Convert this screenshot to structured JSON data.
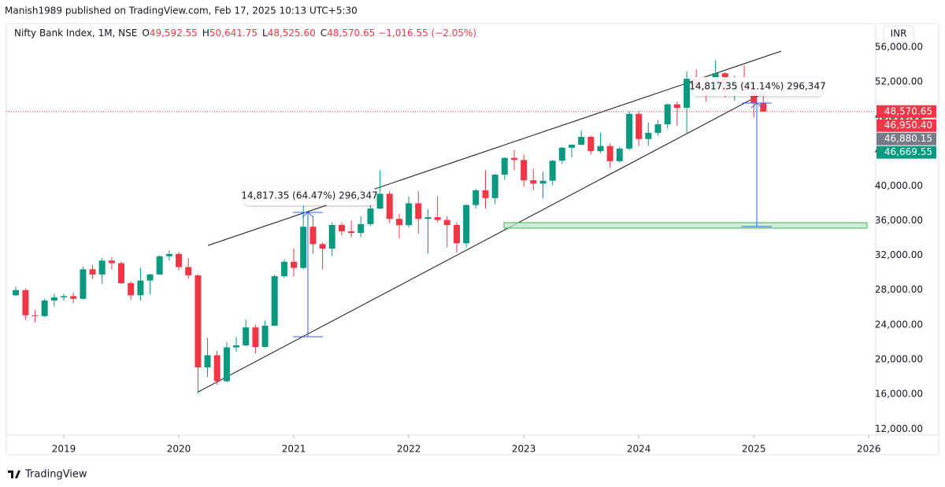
{
  "header": {
    "publisher": "Manish1989 published on TradingView.com, Feb 17, 2025 10:13 UTC+5:30",
    "symbol": "Nifty Bank Index, 1M, NSE",
    "ohlc": [
      {
        "key": "O",
        "value": "49,592.55"
      },
      {
        "key": "H",
        "value": "50,641.75"
      },
      {
        "key": "L",
        "value": "48,525.60"
      },
      {
        "key": "C",
        "value": "48,570.65"
      }
    ],
    "change": "−1,016.55 (−2.05%)",
    "currency": "INR"
  },
  "footer": {
    "brand": "TradingView"
  },
  "annotations": [
    "14,817.35 (64.47%) 296,347",
    "14,817.35 (41.14%) 296,347"
  ],
  "chart_data": {
    "type": "candlestick",
    "up_color": "#089981",
    "down_color": "#f23645",
    "x": [
      2018.583,
      2018.667,
      2018.75,
      2018.833,
      2018.917,
      2019,
      2019.083,
      2019.167,
      2019.25,
      2019.333,
      2019.417,
      2019.5,
      2019.583,
      2019.667,
      2019.75,
      2019.833,
      2019.917,
      2020,
      2020.083,
      2020.167,
      2020.25,
      2020.333,
      2020.417,
      2020.5,
      2020.583,
      2020.667,
      2020.75,
      2020.833,
      2020.917,
      2021,
      2021.083,
      2021.167,
      2021.25,
      2021.333,
      2021.417,
      2021.5,
      2021.583,
      2021.667,
      2021.75,
      2021.833,
      2021.917,
      2022,
      2022.083,
      2022.167,
      2022.25,
      2022.333,
      2022.417,
      2022.5,
      2022.583,
      2022.667,
      2022.75,
      2022.833,
      2022.917,
      2023,
      2023.083,
      2023.167,
      2023.25,
      2023.333,
      2023.417,
      2023.5,
      2023.583,
      2023.667,
      2023.75,
      2023.833,
      2023.917,
      2024,
      2024.083,
      2024.167,
      2024.25,
      2024.333,
      2024.417,
      2024.5,
      2024.583,
      2024.667,
      2024.75,
      2024.833,
      2024.917,
      2025,
      2025.083
    ],
    "open": [
      27400,
      28000,
      25100,
      25000,
      26800,
      27160,
      27300,
      27000,
      30400,
      29800,
      31400,
      31100,
      28800,
      27400,
      29100,
      29800,
      31900,
      32160,
      30650,
      29700,
      19100,
      20500,
      17500,
      21400,
      21640,
      23700,
      21450,
      23900,
      29600,
      31260,
      30560,
      35300,
      33300,
      32780,
      35500,
      34770,
      34580,
      35600,
      37400,
      39100,
      36200,
      35480,
      38000,
      36200,
      36400,
      36080,
      35500,
      33400,
      37800,
      39500,
      38600,
      41300,
      43230,
      42990,
      40650,
      40270,
      40600,
      42900,
      44400,
      44750,
      45650,
      44000,
      44600,
      42850,
      44300,
      48300,
      45400,
      46120,
      47100,
      49400,
      49000,
      52340,
      51300,
      50930,
      52980,
      50800,
      51900,
      50950,
      49592.55
    ],
    "high": [
      28400,
      28200,
      25700,
      27000,
      27600,
      27600,
      27700,
      30700,
      30900,
      31700,
      31800,
      31300,
      29000,
      30600,
      29900,
      32000,
      32600,
      32400,
      31700,
      29800,
      22500,
      21000,
      22000,
      22600,
      24600,
      24000,
      24500,
      29800,
      31500,
      32800,
      37700,
      36500,
      33500,
      35800,
      35800,
      36000,
      36500,
      38100,
      41800,
      39400,
      36800,
      38800,
      39400,
      37300,
      38800,
      36500,
      35800,
      37900,
      39700,
      41800,
      41400,
      43300,
      44150,
      43600,
      42000,
      41600,
      43000,
      44500,
      44800,
      46400,
      45800,
      46100,
      44900,
      44500,
      48600,
      48600,
      47300,
      47600,
      49500,
      49700,
      53200,
      53400,
      51500,
      54470,
      53100,
      52700,
      53900,
      51500,
      50641.75
    ],
    "low": [
      27300,
      24600,
      24300,
      24900,
      26100,
      26800,
      26500,
      26900,
      29300,
      28700,
      30400,
      28700,
      26900,
      26800,
      27500,
      29800,
      31400,
      30300,
      29300,
      16100,
      18000,
      17100,
      17400,
      20900,
      21500,
      20700,
      21400,
      23900,
      29400,
      29600,
      30400,
      32200,
      30400,
      31900,
      34300,
      34100,
      34100,
      35400,
      37300,
      35700,
      34000,
      35200,
      34500,
      32200,
      35800,
      32900,
      32300,
      32900,
      37400,
      37400,
      37900,
      40700,
      41800,
      39900,
      39500,
      38600,
      40100,
      42500,
      43300,
      44700,
      43600,
      43800,
      42100,
      42700,
      44100,
      44600,
      44600,
      45800,
      46600,
      46900,
      46100,
      50700,
      49700,
      50400,
      50200,
      49800,
      50500,
      47850,
      48525.6
    ],
    "close": [
      28000,
      25100,
      25000,
      26800,
      27160,
      27300,
      27000,
      30400,
      29800,
      31400,
      31100,
      28800,
      27400,
      29100,
      29800,
      31900,
      32160,
      30650,
      29700,
      19100,
      20500,
      17500,
      21400,
      21640,
      23700,
      21450,
      23900,
      29600,
      31260,
      30560,
      35300,
      33300,
      32780,
      35500,
      34770,
      34580,
      35600,
      37400,
      39100,
      36200,
      35480,
      38000,
      36200,
      36400,
      36080,
      35500,
      33400,
      37800,
      39500,
      38600,
      41300,
      43230,
      42990,
      40650,
      40270,
      40600,
      42900,
      44400,
      44750,
      45650,
      44000,
      44600,
      42850,
      44300,
      48300,
      45400,
      46120,
      47100,
      49400,
      49000,
      52340,
      51300,
      50930,
      52980,
      50800,
      51900,
      50950,
      49590,
      48570.65
    ],
    "xlim": [
      2018.5,
      2026.06
    ],
    "xticks": [
      2019,
      2020,
      2021,
      2022,
      2023,
      2024,
      2025,
      2026
    ],
    "ylim": [
      11300,
      58700
    ],
    "yticks": [
      {
        "value": 12000,
        "label": "12,000.00"
      },
      {
        "value": 16000,
        "label": "16,000.00"
      },
      {
        "value": 20000,
        "label": "20,000.00"
      },
      {
        "value": 24000,
        "label": "24,000.00"
      },
      {
        "value": 28000,
        "label": "28,000.00"
      },
      {
        "value": 32000,
        "label": "32,000.00"
      },
      {
        "value": 36000,
        "label": "36,000.00"
      },
      {
        "value": 40000,
        "label": "40,000.00"
      },
      {
        "value": 44000,
        "label": "44,000.00"
      },
      {
        "value": 48000,
        "label": "48,000.00"
      },
      {
        "value": 52000,
        "label": "52,000.00"
      },
      {
        "value": 56000,
        "label": "56,000.00"
      }
    ],
    "price_labels": [
      {
        "value": 48570.65,
        "label": "48,570.65",
        "color": "#f23645"
      },
      {
        "value": 46950.4,
        "label": "46,950.40",
        "color": "#f23645"
      },
      {
        "value": 46880.15,
        "label": "46,880.15",
        "color": "#787b86"
      },
      {
        "value": 46669.55,
        "label": "46,669.55",
        "color": "#089981"
      }
    ],
    "grid": false
  }
}
